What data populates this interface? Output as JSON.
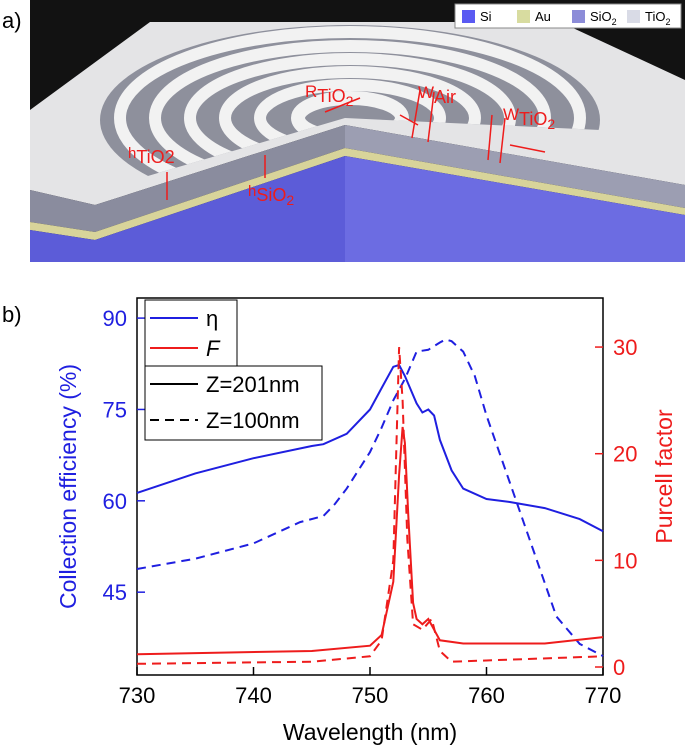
{
  "panel_a": {
    "label": "a)",
    "legend": [
      {
        "name": "Si",
        "color": "#5a5af2"
      },
      {
        "name": "Au",
        "color": "#d8dca0"
      },
      {
        "name": "SiO",
        "subscript": "2",
        "color": "#8c8cd8"
      },
      {
        "name": "TiO",
        "subscript": "2",
        "color": "#d9dbe6"
      }
    ],
    "annotations": [
      {
        "symbol": "R",
        "subscript": "TiO",
        "subsubscript": "2"
      },
      {
        "symbol": "W",
        "subscript": "Air"
      },
      {
        "symbol": "W",
        "subscript": "TiO",
        "subsubscript": "2"
      },
      {
        "symbol": "h",
        "subscript": "TiO2"
      },
      {
        "symbol": "h",
        "subscript": "SiO",
        "subsubscript": "2"
      }
    ]
  },
  "chart_data": {
    "type": "line",
    "panel_label": "b)",
    "x_label": "Wavelength (nm)",
    "y_label": "Collection efficiency (%)",
    "y2_label": "Purcell factor",
    "xlim": [
      730,
      770
    ],
    "xticks": [
      730,
      740,
      750,
      760,
      770
    ],
    "ylim": [
      31.4,
      93.3
    ],
    "yticks": [
      45,
      60,
      75,
      90
    ],
    "y_color": "#1f1fe0",
    "y2lim": [
      -0.75,
      34.6
    ],
    "y2ticks": [
      0,
      10,
      20,
      30
    ],
    "y2_color": "#ee1c1c",
    "legend_quantities": [
      {
        "label": "η",
        "color": "#1f1fe0"
      },
      {
        "label": "F",
        "color": "#ee1c1c",
        "italic": true
      }
    ],
    "legend_styles": [
      {
        "label": "Z=201nm",
        "dashed": false,
        "color": "#000000"
      },
      {
        "label": "Z=100nm",
        "dashed": true,
        "color": "#000000"
      }
    ],
    "series": [
      {
        "color": "#1f1fe0",
        "dashed": false,
        "x": [
          730,
          735,
          740,
          745,
          746,
          748,
          750,
          751,
          752,
          752.5,
          753,
          754,
          754.5,
          755,
          755.5,
          756,
          757,
          758,
          760,
          762,
          765,
          768,
          770
        ],
        "values": [
          61.3,
          64.5,
          67,
          69,
          69.3,
          71,
          75,
          78.5,
          82,
          82.3,
          80.5,
          76,
          74.5,
          75,
          74,
          70,
          65,
          62,
          60.3,
          59.8,
          58.8,
          57,
          55
        ]
      },
      {
        "color": "#1f1fe0",
        "dashed": true,
        "x": [
          730,
          735,
          740,
          744,
          746,
          747,
          748,
          750,
          751,
          752,
          753,
          754,
          755,
          756,
          756.5,
          757,
          758,
          759,
          760,
          762,
          764,
          766,
          768,
          770
        ],
        "values": [
          48.8,
          50.5,
          53,
          56.5,
          57.5,
          59.5,
          62,
          68,
          72,
          76.5,
          80,
          84.5,
          84.8,
          86,
          86.5,
          86.2,
          84.5,
          80.5,
          74,
          63,
          52,
          41,
          36.5,
          34.5
        ]
      },
      {
        "color": "#ee1c1c",
        "dashed": false,
        "axis": "y2",
        "x": [
          730,
          745,
          750,
          751,
          752,
          752.5,
          752.8,
          753,
          753.3,
          753.7,
          754,
          754.5,
          755,
          755.5,
          756,
          758,
          765,
          770
        ],
        "values": [
          1.2,
          1.5,
          2,
          3,
          8,
          18,
          22.5,
          21,
          14,
          6,
          4.5,
          4,
          4.5,
          3.5,
          2.5,
          2.2,
          2.2,
          2.8
        ]
      },
      {
        "color": "#ee1c1c",
        "dashed": true,
        "axis": "y2",
        "x": [
          730,
          745,
          750,
          751,
          752,
          752.5,
          752.8,
          753.2,
          753.7,
          754.5,
          755.3,
          756,
          757,
          770
        ],
        "values": [
          0.3,
          0.5,
          1,
          2.5,
          10,
          30,
          25,
          12,
          4,
          3.5,
          4.5,
          1.5,
          0.5,
          1
        ]
      }
    ]
  }
}
